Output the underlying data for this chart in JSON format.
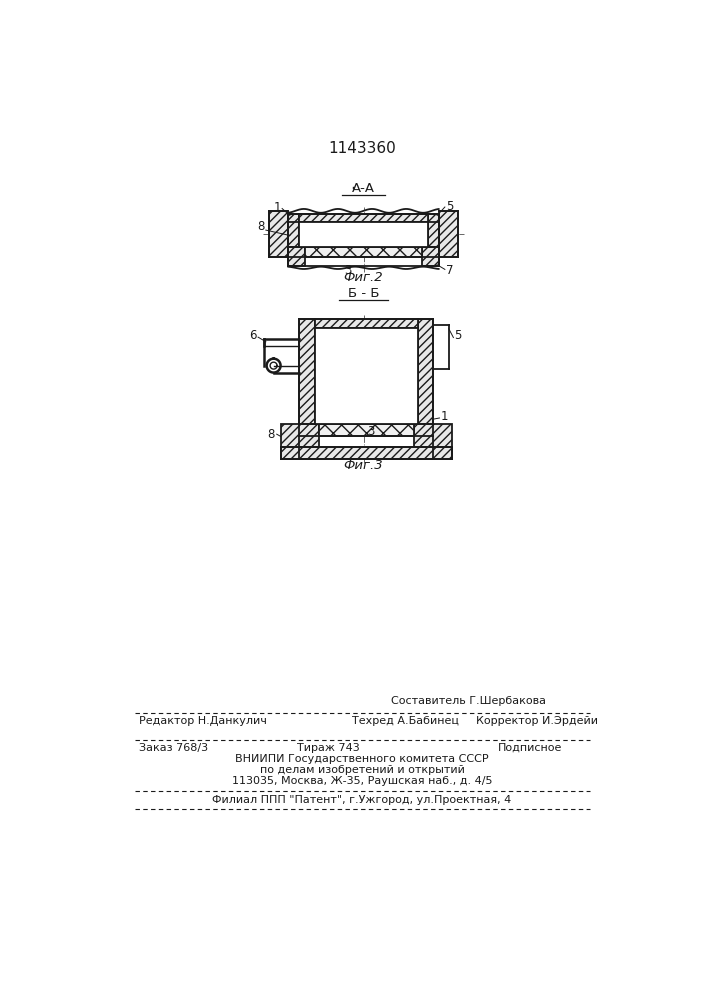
{
  "patent_number": "1143360",
  "fig2_label": "А-А",
  "fig2_caption": "Фиг.2",
  "fig3_label": "Б - Б",
  "fig3_caption": "Фиг.3",
  "line_color": "#1a1a1a",
  "footer_editor": "Редактор Н.Данкулич",
  "footer_compiler": "Составитель Г.Шербакова",
  "footer_techred": "Техред А.Бабинец",
  "footer_corrector": "Корректор И.Эрдейи",
  "footer_order": "Заказ 768/3",
  "footer_tirazh": "Тираж 743",
  "footer_podpisnoe": "Подписное",
  "footer_org1": "ВНИИПИ Государственного комитета СССР",
  "footer_org2": "по делам изобретений и открытий",
  "footer_org3": "113035, Москва, Ж-35, Раушская наб., д. 4/5",
  "footer_filial": "Филиал ППП \"Патент\", г.Ужгород, ул.Проектная, 4"
}
